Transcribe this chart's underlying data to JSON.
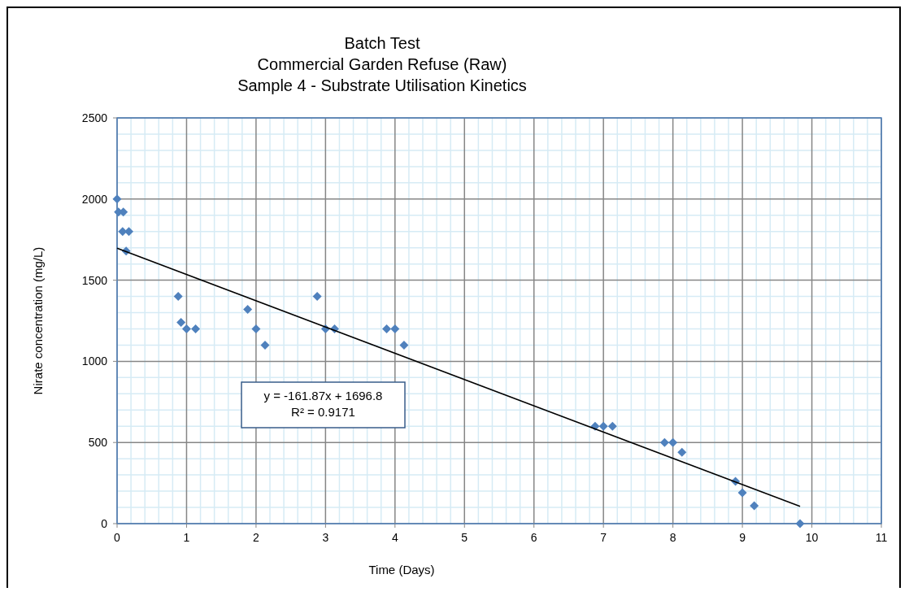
{
  "chart_data": {
    "type": "scatter",
    "title": "Batch Test\nCommercial Garden Refuse (Raw)\nSample 4 - Substrate Utilisation Kinetics",
    "xlabel": "Time (Days)",
    "ylabel": "Nirate concentration (mg/L)",
    "xlim": [
      0,
      11
    ],
    "xticks": [
      0,
      1,
      2,
      3,
      4,
      5,
      6,
      7,
      8,
      9,
      10,
      11
    ],
    "ylim": [
      0,
      2500
    ],
    "yticks": [
      0,
      500,
      1000,
      1500,
      2000,
      2500
    ],
    "grid": true,
    "marker": "diamond",
    "annotations": [
      "y = -161.87x + 1696.8",
      "R² = 0.9171"
    ],
    "series": [
      {
        "color": "#4f81bd",
        "x": [
          0,
          0.02,
          0.09,
          0.08,
          0.17,
          0.13,
          0.88,
          0.92,
          1,
          1.13,
          1.88,
          2,
          2.13,
          2.88,
          3,
          3.13,
          3.88,
          4,
          4.13,
          6.88,
          7,
          7.13,
          7.88,
          8,
          8.13,
          8.9,
          9,
          9.17,
          9.83
        ],
        "values": [
          2000,
          1920,
          1920,
          1800,
          1800,
          1680,
          1400,
          1240,
          1200,
          1200,
          1320,
          1200,
          1100,
          1400,
          1200,
          1200,
          1200,
          1200,
          1100,
          600,
          600,
          600,
          500,
          500,
          440,
          260,
          190,
          110,
          0
        ]
      },
      {
        "type": "line",
        "color": "#000000",
        "marker": "none",
        "x": [
          0,
          9.83
        ],
        "values": [
          1697,
          106
        ]
      }
    ]
  }
}
